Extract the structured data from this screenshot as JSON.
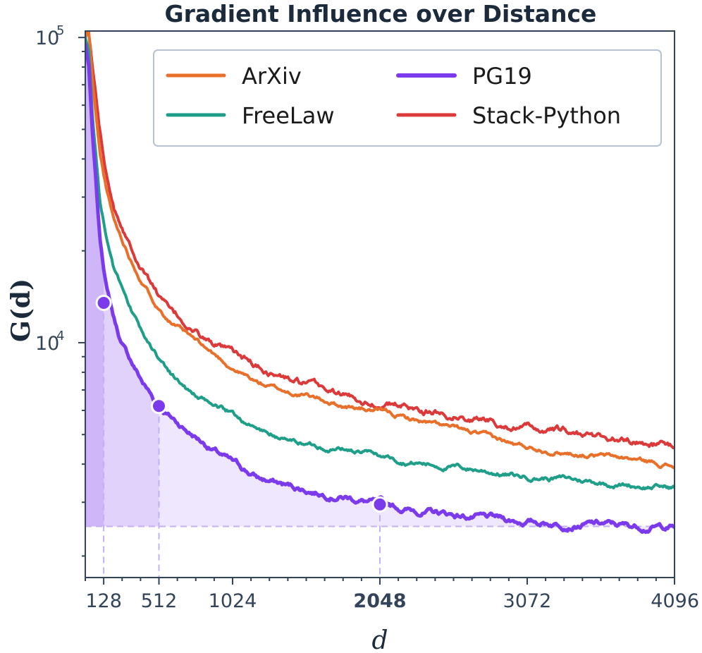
{
  "chart_data": {
    "type": "line",
    "title": "Gradient Influence over Distance",
    "xlabel": "d",
    "ylabel": "G(d)",
    "xlim": [
      0,
      4096
    ],
    "ylim": [
      1700,
      105000
    ],
    "yscale": "log",
    "xticks": [
      {
        "value": 128,
        "label": "128",
        "highlight": false
      },
      {
        "value": 512,
        "label": "512",
        "highlight": false
      },
      {
        "value": 1024,
        "label": "1024",
        "highlight": false
      },
      {
        "value": 2048,
        "label": "2048",
        "highlight": true
      },
      {
        "value": 3072,
        "label": "3072",
        "highlight": false
      },
      {
        "value": 4096,
        "label": "4096",
        "highlight": false
      }
    ],
    "yticks": [
      {
        "value": 100000,
        "base": "10",
        "exp": "5"
      },
      {
        "value": 10000,
        "base": "10",
        "exp": "4"
      }
    ],
    "legend_position": "top-right",
    "grid": false,
    "series": [
      {
        "name": "ArXiv",
        "color": "#e8702a",
        "x": [
          0,
          25,
          50,
          100,
          150,
          200,
          300,
          400,
          500,
          600,
          700,
          800,
          1000,
          1200,
          1400,
          1600,
          1800,
          2000,
          2200,
          2500,
          2800,
          3000,
          3300,
          3600,
          3800,
          4096
        ],
        "y": [
          100000,
          105000,
          72000,
          42000,
          31000,
          25000,
          19500,
          15800,
          13300,
          11800,
          10700,
          9800,
          8400,
          7400,
          6900,
          6600,
          6200,
          6000,
          5700,
          5300,
          4900,
          4600,
          4400,
          4250,
          4150,
          3950
        ]
      },
      {
        "name": "FreeLaw",
        "color": "#1f9e89",
        "x": [
          0,
          25,
          50,
          100,
          150,
          200,
          300,
          400,
          500,
          600,
          700,
          800,
          1000,
          1200,
          1400,
          1600,
          1800,
          2000,
          2200,
          2500,
          2800,
          3000,
          3300,
          3600,
          3800,
          4096
        ],
        "y": [
          100000,
          90000,
          55000,
          30000,
          22000,
          17500,
          13100,
          10400,
          9000,
          7900,
          7100,
          6500,
          5900,
          5200,
          4800,
          4600,
          4500,
          4300,
          4100,
          3950,
          3800,
          3650,
          3600,
          3480,
          3420,
          3350
        ]
      },
      {
        "name": "PG19",
        "color": "#7c3aed",
        "x": [
          0,
          25,
          50,
          100,
          150,
          200,
          250,
          300,
          400,
          500,
          600,
          700,
          800,
          1000,
          1200,
          1400,
          1600,
          1800,
          2048,
          2200,
          2500,
          2800,
          3000,
          3300,
          3600,
          3800,
          4096
        ],
        "y": [
          95000,
          80000,
          48000,
          22000,
          15000,
          12000,
          10000,
          9000,
          7400,
          6300,
          5700,
          5200,
          4800,
          4100,
          3600,
          3400,
          3250,
          3150,
          2950,
          2850,
          2750,
          2650,
          2600,
          2560,
          2540,
          2500,
          2500
        ]
      },
      {
        "name": "Stack-Python",
        "color": "#dc3a3a",
        "x": [
          0,
          25,
          50,
          100,
          150,
          200,
          300,
          400,
          500,
          600,
          700,
          800,
          1000,
          1200,
          1400,
          1600,
          1800,
          2000,
          2200,
          2500,
          2800,
          3000,
          3300,
          3600,
          3800,
          4096
        ],
        "y": [
          105000,
          103000,
          80000,
          50000,
          36000,
          28500,
          22000,
          17600,
          14700,
          12500,
          11500,
          10500,
          9200,
          8300,
          7600,
          7100,
          6700,
          6400,
          6200,
          5900,
          5600,
          5300,
          5100,
          4900,
          4800,
          4550
        ]
      }
    ],
    "highlight_points": [
      {
        "series": "PG19",
        "x": 128,
        "y": 13500
      },
      {
        "series": "PG19",
        "x": 512,
        "y": 6200
      },
      {
        "series": "PG19",
        "x": 2048,
        "y": 2950
      }
    ],
    "baseline_y": 2500,
    "fill_color": "#7c3aed"
  }
}
